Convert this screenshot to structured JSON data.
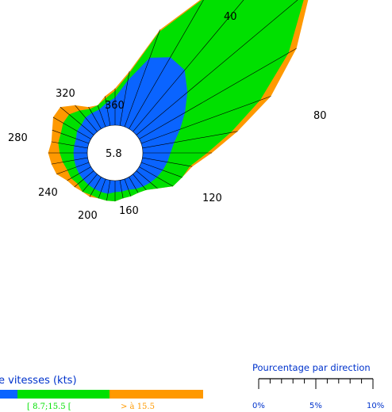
{
  "chart_data": {
    "type": "wind-rose",
    "calm_value": "5.8",
    "direction_labels": [
      "40",
      "80",
      "120",
      "160",
      "200",
      "240",
      "280",
      "320",
      "360"
    ],
    "sectors": [
      {
        "dir": 0,
        "blue": 1.2,
        "green": 1.5,
        "orange": 1.6
      },
      {
        "dir": 10,
        "blue": 2.0,
        "green": 2.3,
        "orange": 2.4
      },
      {
        "dir": 20,
        "blue": 3.2,
        "green": 4.4,
        "orange": 4.5
      },
      {
        "dir": 30,
        "blue": 3.6,
        "green": 6.6,
        "orange": 6.7
      },
      {
        "dir": 40,
        "blue": 3.5,
        "green": 8.6,
        "orange": 8.8
      },
      {
        "dir": 50,
        "blue": 2.9,
        "green": 9.6,
        "orange": 9.9
      },
      {
        "dir": 60,
        "blue": 2.3,
        "green": 7.5,
        "orange": 7.9
      },
      {
        "dir": 70,
        "blue": 1.8,
        "green": 5.5,
        "orange": 6.0
      },
      {
        "dir": 80,
        "blue": 1.4,
        "green": 3.9,
        "orange": 4.2
      },
      {
        "dir": 90,
        "blue": 1.2,
        "green": 2.8,
        "orange": 3.0
      },
      {
        "dir": 100,
        "blue": 1.1,
        "green": 2.1,
        "orange": 2.2
      },
      {
        "dir": 110,
        "blue": 1.0,
        "green": 1.9,
        "orange": 1.9
      },
      {
        "dir": 120,
        "blue": 0.9,
        "green": 1.7,
        "orange": 1.7
      },
      {
        "dir": 130,
        "blue": 0.8,
        "green": 1.2,
        "orange": 1.2
      },
      {
        "dir": 140,
        "blue": 0.7,
        "green": 0.9,
        "orange": 0.9
      },
      {
        "dir": 150,
        "blue": 0.6,
        "green": 0.8,
        "orange": 0.8
      },
      {
        "dir": 160,
        "blue": 0.5,
        "green": 0.8,
        "orange": 0.8
      },
      {
        "dir": 170,
        "blue": 0.5,
        "green": 0.8,
        "orange": 0.8
      },
      {
        "dir": 180,
        "blue": 0.5,
        "green": 0.9,
        "orange": 0.9
      },
      {
        "dir": 190,
        "blue": 0.6,
        "green": 0.9,
        "orange": 0.9
      },
      {
        "dir": 200,
        "blue": 0.6,
        "green": 0.9,
        "orange": 0.9
      },
      {
        "dir": 210,
        "blue": 0.6,
        "green": 0.9,
        "orange": 1.0
      },
      {
        "dir": 220,
        "blue": 0.6,
        "green": 1.0,
        "orange": 1.0
      },
      {
        "dir": 230,
        "blue": 0.6,
        "green": 0.9,
        "orange": 1.1
      },
      {
        "dir": 240,
        "blue": 0.6,
        "green": 1.0,
        "orange": 1.2
      },
      {
        "dir": 250,
        "blue": 0.6,
        "green": 1.0,
        "orange": 1.5
      },
      {
        "dir": 260,
        "blue": 0.6,
        "green": 1.1,
        "orange": 1.6
      },
      {
        "dir": 270,
        "blue": 0.6,
        "green": 1.2,
        "orange": 1.7
      },
      {
        "dir": 280,
        "blue": 0.6,
        "green": 1.3,
        "orange": 1.6
      },
      {
        "dir": 290,
        "blue": 0.6,
        "green": 1.3,
        "orange": 1.7
      },
      {
        "dir": 300,
        "blue": 0.7,
        "green": 1.4,
        "orange": 1.9
      },
      {
        "dir": 310,
        "blue": 0.7,
        "green": 1.4,
        "orange": 1.9
      },
      {
        "dir": 320,
        "blue": 0.8,
        "green": 1.2,
        "orange": 1.5
      },
      {
        "dir": 330,
        "blue": 0.8,
        "green": 1.0,
        "orange": 1.1
      },
      {
        "dir": 340,
        "blue": 0.8,
        "green": 1.0,
        "orange": 1.0
      },
      {
        "dir": 350,
        "blue": 1.0,
        "green": 1.2,
        "orange": 1.3
      }
    ],
    "legend": {
      "title_visible": "e vitesses (kts)",
      "classes": [
        {
          "label": "",
          "color": "#0a64ff"
        },
        {
          "label": "[ 8.7;15.5 [",
          "color": "#00e000"
        },
        {
          "label": "> à 15.5",
          "color": "#ff9900"
        }
      ]
    },
    "scale": {
      "title": "Pourcentage par direction",
      "ticks": [
        "0%",
        "5%",
        "10%"
      ],
      "max_percent": 10
    },
    "colors": {
      "blue": "#0a64ff",
      "green": "#00e000",
      "orange": "#ff9900",
      "legend_title": "#0033cc"
    }
  }
}
